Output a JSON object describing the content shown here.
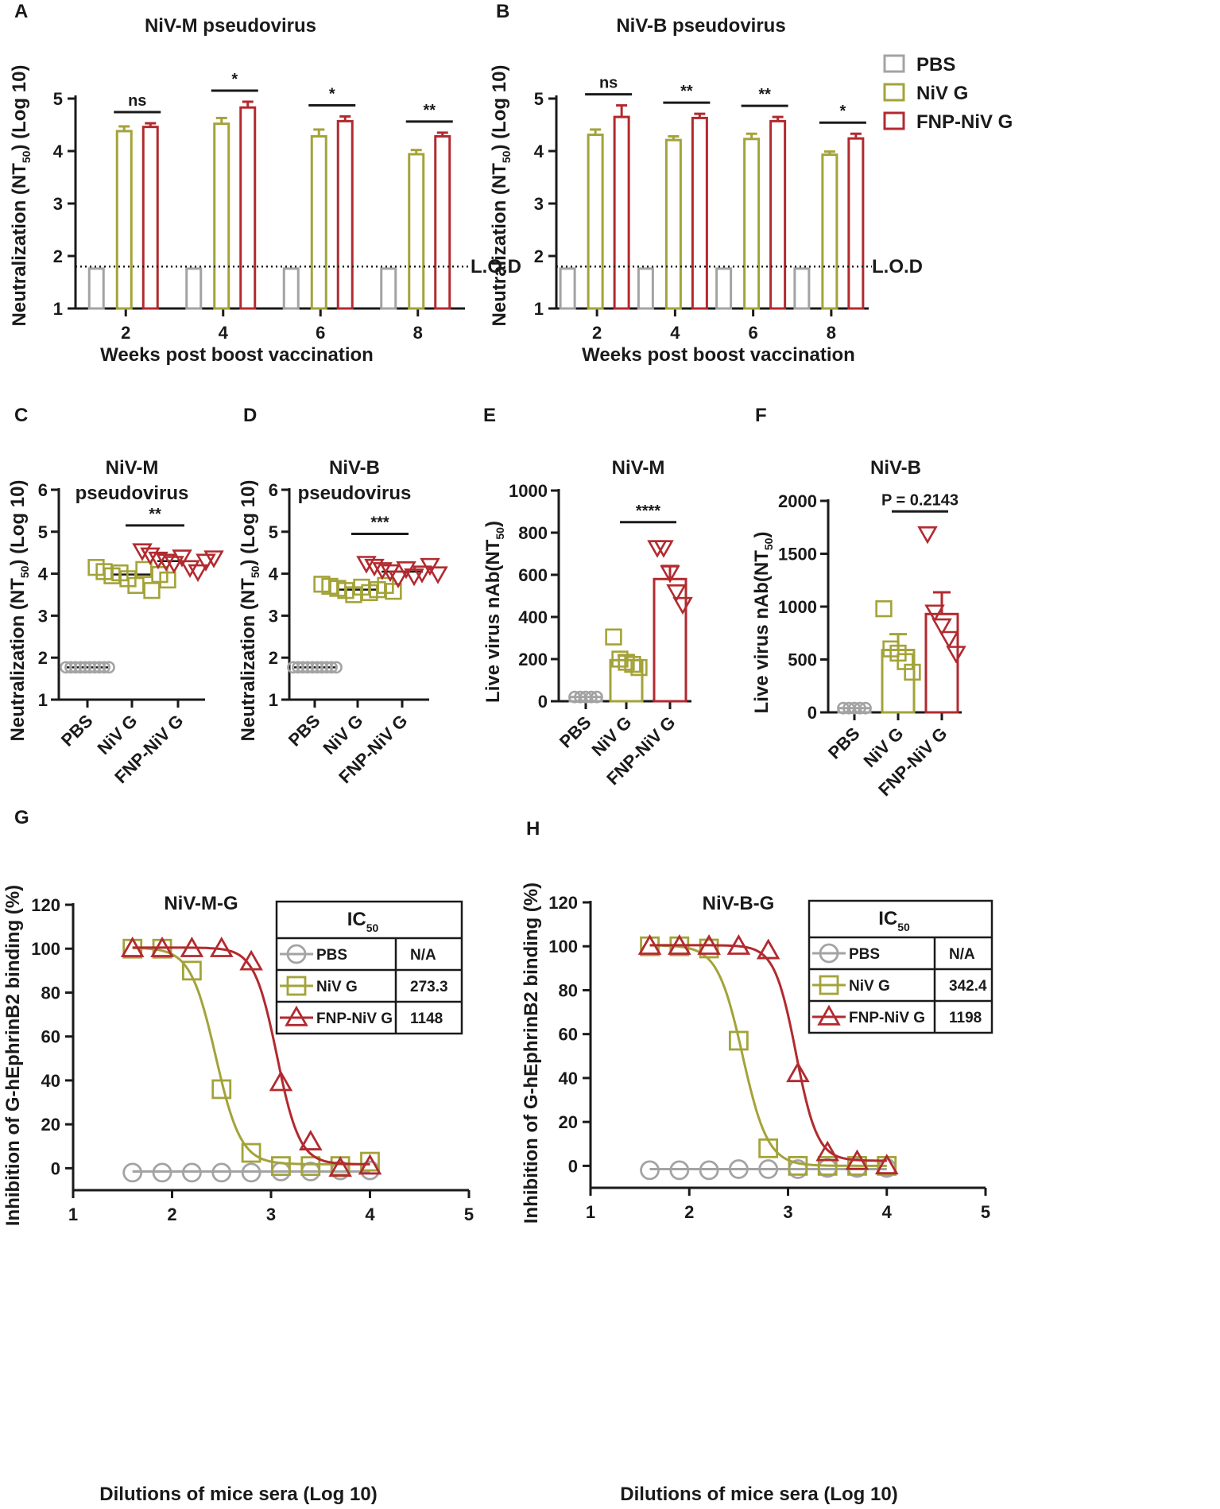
{
  "colors": {
    "pbs": "#a3a3a3",
    "nivg": "#a3a33a",
    "fnp": "#b22a2f",
    "axis": "#1a1a1a"
  },
  "legend": [
    {
      "key": "pbs",
      "label": "PBS"
    },
    {
      "key": "nivg",
      "label": "NiV G"
    },
    {
      "key": "fnp",
      "label": "FNP-NiV G"
    }
  ],
  "chart_data": [
    {
      "id": "A",
      "letter": "A",
      "type": "bar",
      "title": "NiV-M pseudovirus",
      "xlabel": "Weeks post boost vaccination",
      "ylabel": "Neutralization (NT50) (Log 10)",
      "ylim": [
        1,
        5
      ],
      "yticks": [
        1,
        2,
        3,
        4,
        5
      ],
      "categories": [
        "2",
        "4",
        "6",
        "8"
      ],
      "lod": {
        "value": 1.8,
        "label": "L.O.D"
      },
      "series": [
        {
          "name": "PBS",
          "key": "pbs",
          "values": [
            1.76,
            1.76,
            1.76,
            1.76
          ],
          "errors": [
            0,
            0,
            0,
            0
          ]
        },
        {
          "name": "NiV G",
          "key": "nivg",
          "values": [
            4.38,
            4.52,
            4.28,
            3.94
          ],
          "errors": [
            0.09,
            0.11,
            0.13,
            0.08
          ]
        },
        {
          "name": "FNP-NiV G",
          "key": "fnp",
          "values": [
            4.46,
            4.83,
            4.57,
            4.28
          ],
          "errors": [
            0.07,
            0.11,
            0.09,
            0.07
          ]
        }
      ],
      "significance": [
        "ns",
        "*",
        "*",
        "**"
      ]
    },
    {
      "id": "B",
      "letter": "B",
      "type": "bar",
      "title": "NiV-B pseudovirus",
      "xlabel": "Weeks post boost vaccination",
      "ylabel": "Neutralization (NT50) (Log 10)",
      "ylim": [
        1,
        5
      ],
      "yticks": [
        1,
        2,
        3,
        4,
        5
      ],
      "categories": [
        "2",
        "4",
        "6",
        "8"
      ],
      "lod": {
        "value": 1.8,
        "label": "L.O.D"
      },
      "series": [
        {
          "name": "PBS",
          "key": "pbs",
          "values": [
            1.76,
            1.76,
            1.76,
            1.76
          ],
          "errors": [
            0,
            0,
            0,
            0
          ]
        },
        {
          "name": "NiV G",
          "key": "nivg",
          "values": [
            4.31,
            4.21,
            4.23,
            3.93
          ],
          "errors": [
            0.1,
            0.07,
            0.1,
            0.06
          ]
        },
        {
          "name": "FNP-NiV G",
          "key": "fnp",
          "values": [
            4.65,
            4.63,
            4.57,
            4.24
          ],
          "errors": [
            0.22,
            0.08,
            0.08,
            0.09
          ]
        }
      ],
      "significance": [
        "ns",
        "**",
        "**",
        "*"
      ]
    },
    {
      "id": "C",
      "letter": "C",
      "type": "scatter",
      "title_lines": [
        "NiV-M",
        "pseudovirus"
      ],
      "ylabel": "Neutralization (NT50) (Log 10)",
      "ylim": [
        1,
        6
      ],
      "yticks": [
        1,
        2,
        3,
        4,
        5,
        6
      ],
      "categories": [
        "PBS",
        "NiV G",
        "FNP-NiV G"
      ],
      "bars": false,
      "groups": [
        {
          "key": "pbs",
          "marker": "circle",
          "mean": 1.77,
          "points": [
            1.77,
            1.77,
            1.77,
            1.77,
            1.77,
            1.77,
            1.77,
            1.77,
            1.77,
            1.77
          ]
        },
        {
          "key": "nivg",
          "marker": "square",
          "mean": 3.98,
          "points": [
            4.15,
            4.05,
            3.95,
            4.02,
            3.88,
            3.72,
            4.1,
            3.6,
            3.98,
            3.85
          ]
        },
        {
          "key": "fnp",
          "marker": "triangle-down",
          "mean": 4.3,
          "points": [
            4.55,
            4.45,
            4.35,
            4.3,
            4.25,
            4.4,
            4.15,
            4.05,
            4.3,
            4.38
          ]
        }
      ],
      "significance": [
        {
          "from": 1,
          "to": 2,
          "label": "**",
          "y": 5.15
        }
      ]
    },
    {
      "id": "D",
      "letter": "D",
      "type": "scatter",
      "title_lines": [
        "NiV-B",
        "pseudovirus"
      ],
      "ylabel": "Neutralization (NT50) (Log 10)",
      "ylim": [
        1,
        6
      ],
      "yticks": [
        1,
        2,
        3,
        4,
        5,
        6
      ],
      "categories": [
        "PBS",
        "NiV G",
        "FNP-NiV G"
      ],
      "bars": false,
      "groups": [
        {
          "key": "pbs",
          "marker": "circle",
          "mean": 1.77,
          "points": [
            1.77,
            1.77,
            1.77,
            1.77,
            1.77,
            1.77,
            1.77,
            1.77,
            1.77,
            1.77
          ]
        },
        {
          "key": "nivg",
          "marker": "square",
          "mean": 3.62,
          "points": [
            3.75,
            3.7,
            3.65,
            3.6,
            3.5,
            3.68,
            3.55,
            3.62,
            3.72,
            3.58
          ]
        },
        {
          "key": "fnp",
          "marker": "triangle-down",
          "mean": 4.05,
          "points": [
            4.25,
            4.18,
            4.1,
            4.05,
            3.9,
            4.12,
            3.95,
            4.02,
            4.2,
            4.0
          ]
        }
      ],
      "significance": [
        {
          "from": 1,
          "to": 2,
          "label": "***",
          "y": 4.95
        }
      ]
    },
    {
      "id": "E",
      "letter": "E",
      "type": "bar",
      "title_lines": [
        "NiV-M"
      ],
      "ylabel": "Live virus nAb(NT50)",
      "ylim": [
        0,
        1000
      ],
      "yticks": [
        0,
        200,
        400,
        600,
        800,
        1000
      ],
      "categories": [
        "PBS",
        "NiV G",
        "FNP-NiV G"
      ],
      "bars": true,
      "groups": [
        {
          "key": "pbs",
          "marker": "circle",
          "mean": 20,
          "error": 0,
          "points": [
            20,
            20,
            20,
            20,
            20
          ]
        },
        {
          "key": "nivg",
          "marker": "square",
          "mean": 195,
          "error": 22,
          "points": [
            305,
            200,
            185,
            175,
            160
          ]
        },
        {
          "key": "fnp",
          "marker": "triangle-down",
          "mean": 580,
          "error": 62,
          "points": [
            730,
            730,
            610,
            520,
            460
          ]
        }
      ],
      "significance": [
        {
          "from": 1,
          "to": 2,
          "label": "****",
          "y": 850
        }
      ]
    },
    {
      "id": "F",
      "letter": "F",
      "type": "bar",
      "title_lines": [
        "NiV-B"
      ],
      "ylabel": "Live virus nAb(NT50)",
      "ylim": [
        0,
        2000
      ],
      "yticks": [
        0,
        500,
        1000,
        1500,
        2000
      ],
      "categories": [
        "PBS",
        "NiV G",
        "FNP-NiV G"
      ],
      "bars": true,
      "groups": [
        {
          "key": "pbs",
          "marker": "circle",
          "mean": 40,
          "error": 0,
          "points": [
            40,
            40,
            40,
            40,
            40
          ]
        },
        {
          "key": "nivg",
          "marker": "square",
          "mean": 590,
          "error": 150,
          "points": [
            980,
            600,
            560,
            480,
            380
          ]
        },
        {
          "key": "fnp",
          "marker": "triangle-down",
          "mean": 930,
          "error": 205,
          "points": [
            1690,
            950,
            820,
            700,
            560
          ]
        }
      ],
      "significance": [
        {
          "from": 1,
          "to": 2,
          "label": "P = 0.2143",
          "y": 1900
        }
      ]
    },
    {
      "id": "G",
      "letter": "G",
      "type": "line",
      "title": "NiV-M-G",
      "xlabel": "Dilutions of mice sera (Log 10)",
      "ylabel": "Inhibition of G-hEphrinB2 binding (%)",
      "xlim": [
        1,
        5
      ],
      "xticks": [
        1,
        2,
        3,
        4,
        5
      ],
      "ylim": [
        -10,
        120
      ],
      "yticks": [
        0,
        20,
        40,
        60,
        80,
        100,
        120
      ],
      "x": [
        1.6,
        1.9,
        2.2,
        2.5,
        2.8,
        3.1,
        3.4,
        3.7,
        4.0
      ],
      "series": [
        {
          "name": "PBS",
          "key": "pbs",
          "marker": "circle",
          "values": [
            -2,
            -2,
            -2,
            -2,
            -2,
            -1.5,
            -1.5,
            -1,
            -1
          ],
          "fit": {
            "type": "flat",
            "value": -1.5
          }
        },
        {
          "name": "NiV G",
          "key": "nivg",
          "marker": "square",
          "values": [
            100,
            100,
            90,
            36,
            7,
            1,
            1,
            1,
            3
          ],
          "fit": {
            "type": "logistic",
            "top": 100.5,
            "bottom": 1.8,
            "logEC50": 2.44,
            "hill": 3.4
          }
        },
        {
          "name": "FNP-NiV G",
          "key": "fnp",
          "marker": "triangle",
          "values": [
            100,
            100,
            100,
            100,
            94,
            39,
            12,
            0,
            1
          ],
          "fit": {
            "type": "logistic",
            "top": 100.5,
            "bottom": 1.8,
            "logEC50": 3.06,
            "hill": 3.8
          }
        }
      ],
      "table": {
        "header": "IC",
        "header_sub": "50",
        "rows": [
          {
            "key": "pbs",
            "marker": "circle",
            "label": "PBS",
            "value": "N/A"
          },
          {
            "key": "nivg",
            "marker": "square",
            "label": "NiV G",
            "value": "273.3"
          },
          {
            "key": "fnp",
            "marker": "triangle",
            "label": "FNP-NiV G",
            "value": "1148"
          }
        ]
      }
    },
    {
      "id": "H",
      "letter": "H",
      "type": "line",
      "title": "NiV-B-G",
      "xlabel": "Dilutions of mice sera (Log 10)",
      "ylabel": "Inhibition of G-hEphrinB2 binding (%)",
      "xlim": [
        1,
        5
      ],
      "xticks": [
        1,
        2,
        3,
        4,
        5
      ],
      "ylim": [
        -10,
        120
      ],
      "yticks": [
        0,
        20,
        40,
        60,
        80,
        100,
        120
      ],
      "x": [
        1.6,
        1.9,
        2.2,
        2.5,
        2.8,
        3.1,
        3.4,
        3.7,
        4.0
      ],
      "series": [
        {
          "name": "PBS",
          "key": "pbs",
          "marker": "circle",
          "values": [
            -2,
            -2,
            -2,
            -1.5,
            -1.5,
            -1.5,
            -1,
            -1,
            -1
          ],
          "fit": {
            "type": "flat",
            "value": -1.5
          }
        },
        {
          "name": "NiV G",
          "key": "nivg",
          "marker": "square",
          "values": [
            100,
            100,
            99,
            57,
            8,
            0,
            0,
            0,
            0
          ],
          "fit": {
            "type": "logistic",
            "top": 100.5,
            "bottom": 0,
            "logEC50": 2.54,
            "hill": 3.4
          }
        },
        {
          "name": "FNP-NiV G",
          "key": "fnp",
          "marker": "triangle",
          "values": [
            100,
            100,
            100,
            100,
            98,
            42,
            6,
            2,
            0
          ],
          "fit": {
            "type": "logistic",
            "top": 100.5,
            "bottom": 2.3,
            "logEC50": 3.08,
            "hill": 4.0
          }
        }
      ],
      "table": {
        "header": "IC",
        "header_sub": "50",
        "rows": [
          {
            "key": "pbs",
            "marker": "circle",
            "label": "PBS",
            "value": "N/A"
          },
          {
            "key": "nivg",
            "marker": "square",
            "label": "NiV G",
            "value": "342.4"
          },
          {
            "key": "fnp",
            "marker": "triangle",
            "label": "FNP-NiV G",
            "value": "1198"
          }
        ]
      }
    }
  ]
}
